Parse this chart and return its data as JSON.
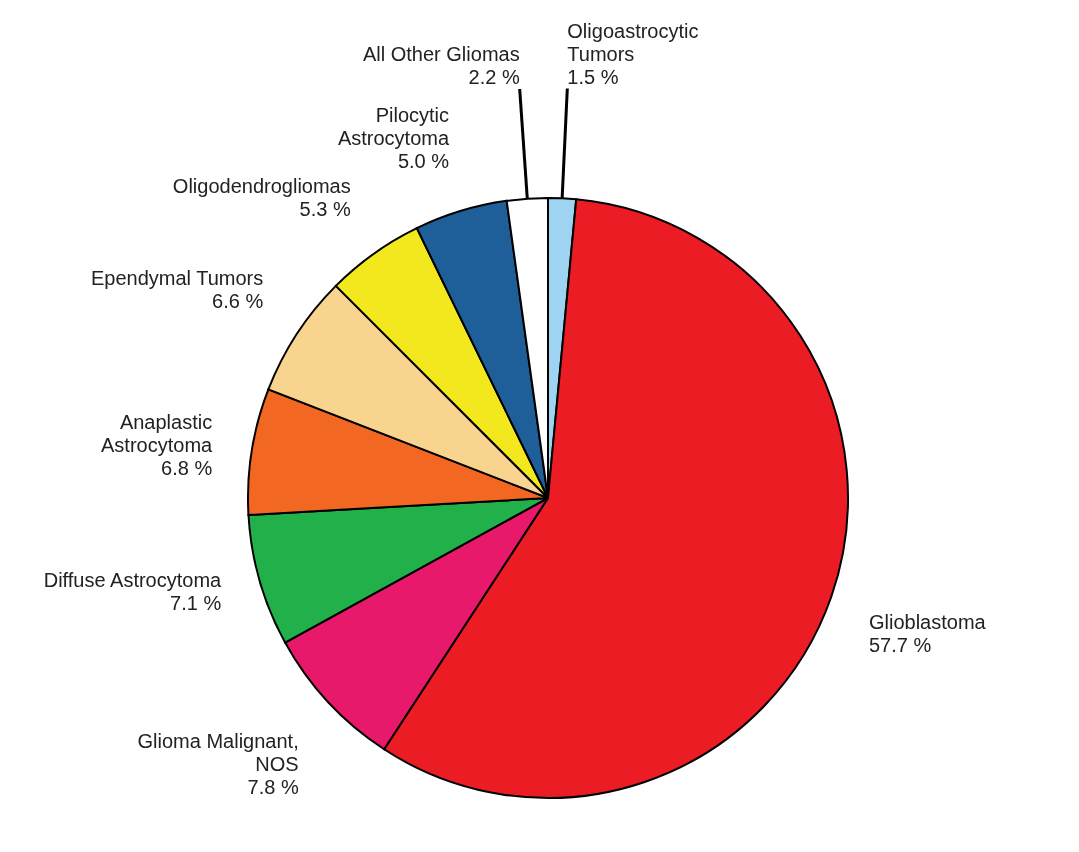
{
  "chart_data": {
    "type": "pie",
    "categories": [
      "Oligoastrocytic Tumors",
      "Glioblastoma",
      "Glioma Malignant, NOS",
      "Diffuse Astrocytoma",
      "Anaplastic Astrocytoma",
      "Ependymal Tumors",
      "Oligodendrogliomas",
      "Pilocytic Astrocytoma",
      "All Other Gliomas"
    ],
    "values": [
      1.5,
      57.7,
      7.8,
      7.1,
      6.8,
      6.6,
      5.3,
      5.0,
      2.2
    ],
    "colors": [
      "#9fd3f2",
      "#ec1c24",
      "#e8196b",
      "#22b04b",
      "#f26722",
      "#f9d48f",
      "#f2e81d",
      "#1f5f99",
      "#ffffff"
    ],
    "value_labels": [
      "1.5 %",
      "57.7 %",
      "7.8 %",
      "7.1 %",
      "6.8 %",
      "6.6 %",
      "5.3 %",
      "5.0 %",
      "2.2 %"
    ]
  }
}
